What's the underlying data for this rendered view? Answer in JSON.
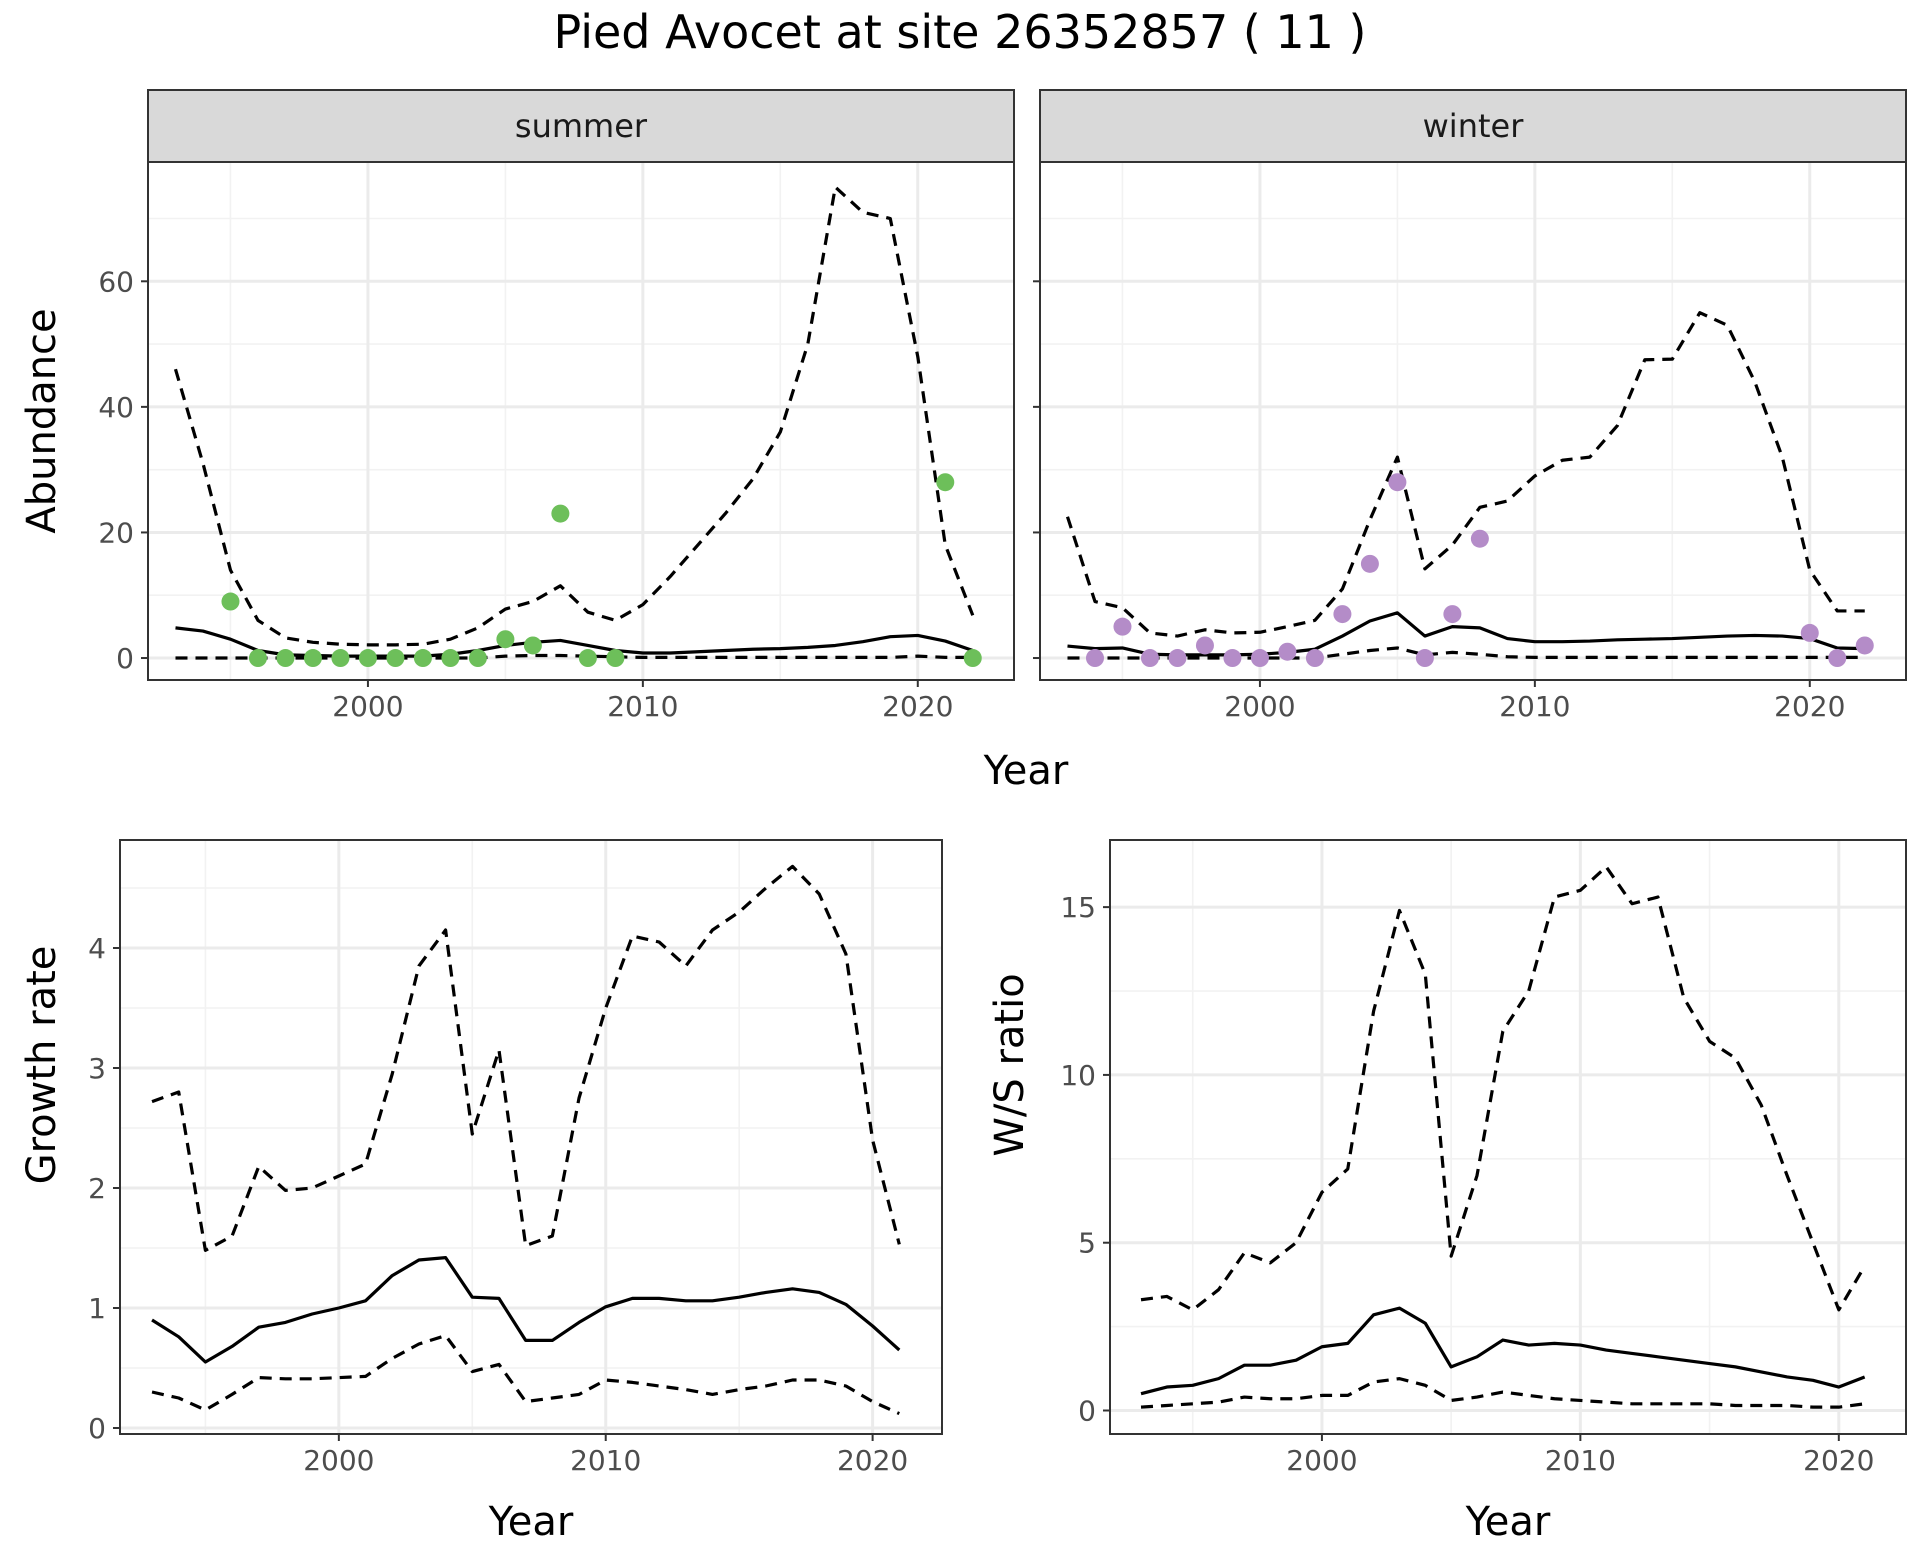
{
  "title": "Pied Avocet at site 26352857 ( 11 )",
  "colors": {
    "summer_points": "#6dbf5a",
    "winter_points": "#b48cc8",
    "lines": "#000000"
  },
  "chart_data": [
    {
      "type": "line",
      "facet": "summer",
      "xlabel": "",
      "ylabel": "Abundance",
      "xlim": [
        1992,
        2023.5
      ],
      "ylim": [
        -3.5,
        79
      ],
      "x_ticks": [
        2000,
        2010,
        2020
      ],
      "y_ticks": [
        0,
        20,
        40,
        60
      ],
      "x": [
        1993,
        1994,
        1995,
        1996,
        1997,
        1998,
        1999,
        2000,
        2001,
        2002,
        2003,
        2004,
        2005,
        2006,
        2007,
        2008,
        2009,
        2010,
        2011,
        2012,
        2013,
        2014,
        2015,
        2016,
        2017,
        2018,
        2019,
        2020,
        2021,
        2022
      ],
      "series": [
        {
          "role": "estimate",
          "style": "solid",
          "values": [
            4.8,
            4.3,
            3,
            1.2,
            0.5,
            0.4,
            0.3,
            0.3,
            0.3,
            0.3,
            0.6,
            1.2,
            2,
            2.5,
            2.8,
            2,
            1.2,
            0.8,
            0.8,
            1,
            1.2,
            1.4,
            1.5,
            1.7,
            2,
            2.6,
            3.4,
            3.6,
            2.7,
            1.2
          ]
        },
        {
          "role": "upper",
          "style": "dashed",
          "values": [
            46,
            31,
            14,
            6,
            3.2,
            2.5,
            2.2,
            2.1,
            2.1,
            2.2,
            3,
            4.8,
            7.8,
            9,
            11.5,
            7.3,
            6,
            8.5,
            13,
            18,
            23,
            28.5,
            36,
            50,
            75,
            71,
            70,
            48,
            18,
            6.8
          ]
        },
        {
          "role": "lower",
          "style": "dashed",
          "values": [
            0,
            0,
            0,
            0,
            0,
            0,
            0,
            0,
            0,
            0,
            0,
            0,
            0.3,
            0.4,
            0.4,
            0.3,
            0.2,
            0.1,
            0.1,
            0.1,
            0.1,
            0.1,
            0.1,
            0.1,
            0.1,
            0.1,
            0.1,
            0.3,
            0.1,
            0.1
          ]
        }
      ],
      "points": {
        "x": [
          1995,
          1996,
          1997,
          1998,
          1999,
          2000,
          2001,
          2002,
          2003,
          2004,
          2005,
          2006,
          2007,
          2008,
          2009,
          2021,
          2022
        ],
        "y": [
          9,
          0,
          0,
          0,
          0,
          0,
          0,
          0,
          0,
          0,
          3,
          2,
          23,
          0,
          0,
          28,
          0
        ]
      }
    },
    {
      "type": "line",
      "facet": "winter",
      "xlabel": "",
      "ylabel": "",
      "xlim": [
        1992,
        2023.5
      ],
      "ylim": [
        -3.5,
        79
      ],
      "x_ticks": [
        2000,
        2010,
        2020
      ],
      "y_ticks": [
        0,
        20,
        40,
        60
      ],
      "x": [
        1993,
        1994,
        1995,
        1996,
        1997,
        1998,
        1999,
        2000,
        2001,
        2002,
        2003,
        2004,
        2005,
        2006,
        2007,
        2008,
        2009,
        2010,
        2011,
        2012,
        2013,
        2014,
        2015,
        2016,
        2017,
        2018,
        2019,
        2020,
        2021,
        2022
      ],
      "series": [
        {
          "role": "estimate",
          "style": "solid",
          "values": [
            1.9,
            1.5,
            1.6,
            0.6,
            0.5,
            0.5,
            0.5,
            0.6,
            0.9,
            1.4,
            3.5,
            5.9,
            7.2,
            3.5,
            5,
            4.8,
            3.1,
            2.6,
            2.6,
            2.7,
            2.9,
            3,
            3.1,
            3.3,
            3.5,
            3.6,
            3.5,
            3.1,
            1.6,
            1.5
          ]
        },
        {
          "role": "upper",
          "style": "dashed",
          "values": [
            22.5,
            9,
            8,
            4,
            3.5,
            4.5,
            4,
            4.1,
            5,
            6,
            11,
            22,
            32,
            14.2,
            18,
            24,
            25,
            29,
            31.5,
            32,
            37,
            47.5,
            47.6,
            55,
            53,
            44,
            32,
            14,
            7.5,
            7.5
          ]
        },
        {
          "role": "lower",
          "style": "dashed",
          "values": [
            0,
            0,
            0,
            0,
            0,
            0,
            0,
            0,
            0,
            0,
            0.6,
            1.2,
            1.6,
            0.5,
            0.9,
            0.6,
            0.2,
            0.1,
            0.1,
            0.1,
            0.1,
            0.1,
            0.1,
            0.1,
            0.1,
            0.1,
            0.1,
            0.1,
            0.1,
            0.1
          ]
        }
      ],
      "points": {
        "x": [
          1994,
          1995,
          1996,
          1997,
          1998,
          1999,
          2000,
          2001,
          2002,
          2003,
          2004,
          2005,
          2006,
          2007,
          2008,
          2020,
          2021,
          2022
        ],
        "y": [
          0,
          5,
          0,
          0,
          2,
          0,
          0,
          1,
          0,
          7,
          15,
          28,
          0,
          7,
          19,
          4,
          0,
          2
        ]
      }
    },
    {
      "type": "line",
      "facet": "",
      "xlabel": "Year",
      "ylabel": "Growth rate",
      "xlim": [
        1991.8,
        2022.6
      ],
      "ylim": [
        -0.05,
        4.9
      ],
      "x_ticks": [
        2000,
        2010,
        2020
      ],
      "y_ticks": [
        0,
        1,
        2,
        3,
        4
      ],
      "x": [
        1993,
        1994,
        1995,
        1996,
        1997,
        1998,
        1999,
        2000,
        2001,
        2002,
        2003,
        2004,
        2005,
        2006,
        2007,
        2008,
        2009,
        2010,
        2011,
        2012,
        2013,
        2014,
        2015,
        2016,
        2017,
        2018,
        2019,
        2020,
        2021
      ],
      "series": [
        {
          "role": "estimate",
          "style": "solid",
          "values": [
            0.9,
            0.76,
            0.55,
            0.68,
            0.84,
            0.88,
            0.95,
            1,
            1.06,
            1.27,
            1.4,
            1.42,
            1.09,
            1.08,
            0.73,
            0.73,
            0.88,
            1.01,
            1.08,
            1.08,
            1.06,
            1.06,
            1.09,
            1.13,
            1.16,
            1.13,
            1.03,
            0.85,
            0.65
          ]
        },
        {
          "role": "upper",
          "style": "dashed",
          "values": [
            2.72,
            2.8,
            1.48,
            1.6,
            2.18,
            1.98,
            2,
            2.1,
            2.2,
            2.95,
            3.85,
            4.15,
            2.45,
            3.15,
            1.52,
            1.6,
            2.75,
            3.5,
            4.1,
            4.05,
            3.85,
            4.15,
            4.3,
            4.5,
            4.68,
            4.45,
            3.95,
            2.4,
            1.53
          ]
        },
        {
          "role": "lower",
          "style": "dashed",
          "values": [
            0.3,
            0.25,
            0.15,
            0.28,
            0.42,
            0.41,
            0.41,
            0.42,
            0.43,
            0.58,
            0.7,
            0.77,
            0.47,
            0.53,
            0.22,
            0.25,
            0.28,
            0.4,
            0.38,
            0.35,
            0.32,
            0.28,
            0.32,
            0.35,
            0.4,
            0.4,
            0.35,
            0.22,
            0.12
          ]
        }
      ]
    },
    {
      "type": "line",
      "facet": "",
      "xlabel": "Year",
      "ylabel": "W/S ratio",
      "xlim": [
        1991.8,
        2022.6
      ],
      "ylim": [
        -0.7,
        17
      ],
      "x_ticks": [
        2000,
        2010,
        2020
      ],
      "y_ticks": [
        0,
        5,
        10,
        15
      ],
      "x": [
        1993,
        1994,
        1995,
        1996,
        1997,
        1998,
        1999,
        2000,
        2001,
        2002,
        2003,
        2004,
        2005,
        2006,
        2007,
        2008,
        2009,
        2010,
        2011,
        2012,
        2013,
        2014,
        2015,
        2016,
        2017,
        2018,
        2019,
        2020,
        2021
      ],
      "series": [
        {
          "role": "estimate",
          "style": "solid",
          "values": [
            0.5,
            0.7,
            0.75,
            0.95,
            1.35,
            1.35,
            1.5,
            1.9,
            2,
            2.85,
            3.05,
            2.6,
            1.3,
            1.6,
            2.1,
            1.95,
            2,
            1.95,
            1.8,
            1.7,
            1.6,
            1.5,
            1.4,
            1.3,
            1.15,
            1,
            0.9,
            0.7,
            1
          ]
        },
        {
          "role": "upper",
          "style": "dashed",
          "values": [
            3.3,
            3.4,
            3,
            3.6,
            4.7,
            4.4,
            5,
            6.5,
            7.2,
            11.9,
            14.9,
            13,
            4.6,
            7,
            11.3,
            12.5,
            15.3,
            15.5,
            16.2,
            15.1,
            15.3,
            12.3,
            11,
            10.5,
            9.1,
            7,
            5,
            3,
            4.3
          ]
        },
        {
          "role": "lower",
          "style": "dashed",
          "values": [
            0.1,
            0.15,
            0.2,
            0.25,
            0.4,
            0.35,
            0.35,
            0.45,
            0.45,
            0.85,
            0.95,
            0.75,
            0.3,
            0.4,
            0.55,
            0.45,
            0.35,
            0.3,
            0.25,
            0.2,
            0.2,
            0.2,
            0.2,
            0.15,
            0.15,
            0.15,
            0.1,
            0.1,
            0.2
          ]
        }
      ]
    }
  ]
}
